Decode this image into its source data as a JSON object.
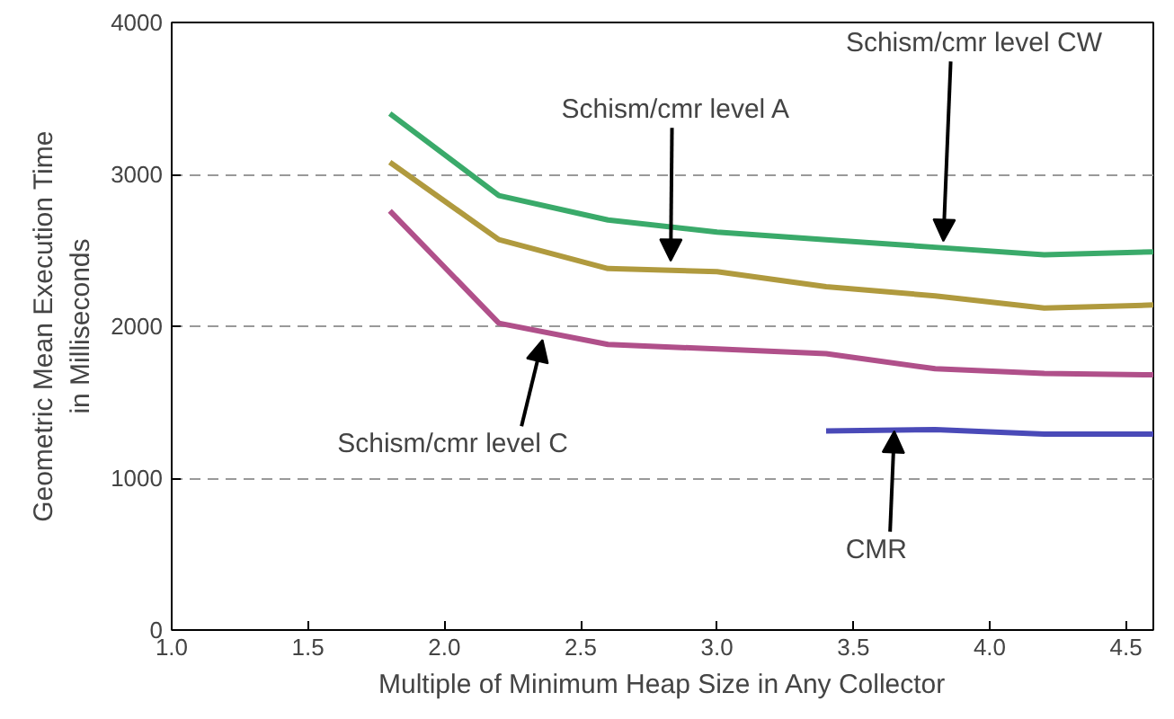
{
  "chart_data": {
    "type": "line",
    "xlabel": "Multiple of Minimum Heap Size in Any Collector",
    "ylabel": "Geometric Mean Execution Time\nin Milliseconds",
    "xlim": [
      1.0,
      4.6
    ],
    "ylim": [
      0,
      4000
    ],
    "xticks": [
      {
        "value": 1.0,
        "label": "1.0"
      },
      1.5,
      {
        "value": 2.0,
        "label": "2.0"
      },
      2.5,
      {
        "value": 3.0,
        "label": "3.0"
      },
      3.5,
      {
        "value": 4.0,
        "label": "4.0"
      },
      4.5
    ],
    "yticks": [
      0,
      1000,
      2000,
      3000,
      4000
    ],
    "grid": "y",
    "series": [
      {
        "color": "#3aaa6a",
        "x": [
          1.8,
          2.2,
          2.6,
          3.0,
          3.4,
          3.8,
          4.2,
          4.6
        ],
        "values": [
          3400,
          2860,
          2700,
          2620,
          2570,
          2520,
          2470,
          2490
        ]
      },
      {
        "color": "#b09a3e",
        "x": [
          1.8,
          2.2,
          2.6,
          3.0,
          3.4,
          3.8,
          4.2,
          4.6
        ],
        "values": [
          3080,
          2570,
          2380,
          2360,
          2260,
          2200,
          2120,
          2140
        ]
      },
      {
        "color": "#b0508a",
        "x": [
          1.8,
          2.2,
          2.6,
          3.0,
          3.4,
          3.8,
          4.2,
          4.6
        ],
        "values": [
          2760,
          2020,
          1880,
          1850,
          1820,
          1720,
          1690,
          1680
        ]
      },
      {
        "color": "#4a4ab8",
        "x": [
          3.4,
          3.8,
          4.2,
          4.6
        ],
        "values": [
          1310,
          1320,
          1290,
          1290
        ]
      }
    ],
    "annotations": [
      {
        "text": "Schism/cmr level CW",
        "x": 3.83,
        "y": 2560
      },
      {
        "text": "Schism/cmr level A",
        "x": 2.83,
        "y": 2430
      },
      {
        "text": "Schism/cmr level C",
        "x": 2.36,
        "y": 1910
      },
      {
        "text": "CMR",
        "x": 3.65,
        "y": 1310
      }
    ]
  }
}
